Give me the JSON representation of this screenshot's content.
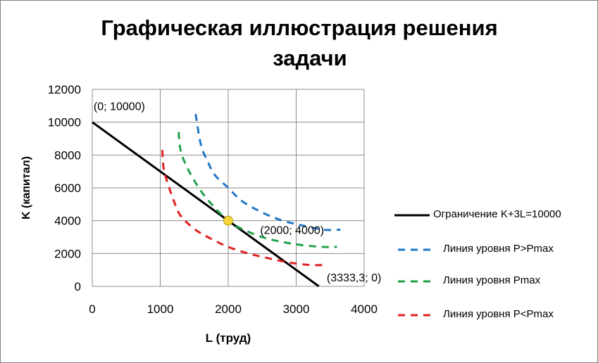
{
  "chart_data": {
    "type": "line",
    "title_lines": [
      "Графическая иллюстрация решения",
      "задачи"
    ],
    "xlabel": "L (труд)",
    "ylabel": "K (капитал)",
    "xlim": [
      0,
      4000
    ],
    "ylim": [
      0,
      12000
    ],
    "xticks": [
      0,
      1000,
      2000,
      3000,
      4000
    ],
    "yticks": [
      0,
      2000,
      4000,
      6000,
      8000,
      10000,
      12000
    ],
    "grid": true,
    "legend_position": "right",
    "series": [
      {
        "name": "Ограничение K+3L=10000",
        "color": "#000000",
        "style": "solid",
        "points": [
          [
            0,
            10000
          ],
          [
            3333.3,
            0
          ]
        ]
      },
      {
        "name": "Линия уровня P>Pmax",
        "color": "#1f77c8",
        "style": "dashed",
        "points": [
          [
            1520,
            10500
          ],
          [
            1600,
            8600
          ],
          [
            1700,
            7600
          ],
          [
            1800,
            6800
          ],
          [
            2000,
            6000
          ],
          [
            2200,
            5200
          ],
          [
            2500,
            4500
          ],
          [
            2800,
            4000
          ],
          [
            3100,
            3700
          ],
          [
            3400,
            3450
          ],
          [
            3650,
            3450
          ]
        ]
      },
      {
        "name": "Линия  уровня Pmax",
        "color": "#1fa04a",
        "style": "dashed",
        "points": [
          [
            1270,
            9400
          ],
          [
            1300,
            8300
          ],
          [
            1400,
            7200
          ],
          [
            1600,
            5800
          ],
          [
            1800,
            4800
          ],
          [
            2000,
            4000
          ],
          [
            2200,
            3500
          ],
          [
            2500,
            3000
          ],
          [
            2800,
            2700
          ],
          [
            3100,
            2500
          ],
          [
            3400,
            2400
          ],
          [
            3600,
            2400
          ]
        ]
      },
      {
        "name": "Линия уровня P<Pmax",
        "color": "#e02020",
        "style": "dashed",
        "points": [
          [
            1030,
            8300
          ],
          [
            1050,
            7200
          ],
          [
            1100,
            6400
          ],
          [
            1200,
            5200
          ],
          [
            1300,
            4300
          ],
          [
            1500,
            3500
          ],
          [
            1700,
            3000
          ],
          [
            2000,
            2400
          ],
          [
            2300,
            2000
          ],
          [
            2600,
            1700
          ],
          [
            2900,
            1450
          ],
          [
            3200,
            1300
          ],
          [
            3400,
            1300
          ]
        ]
      }
    ],
    "point_marker": {
      "x": 2000,
      "y": 4000,
      "color": "#f5d43c"
    },
    "annotations": [
      {
        "text": "(0; 10000)",
        "x": 20,
        "y": 11000
      },
      {
        "text": "(2000; 4000)",
        "x": 2470,
        "y": 3450
      },
      {
        "text": "(3333,3; 0)",
        "x": 3450,
        "y": 550
      }
    ]
  }
}
